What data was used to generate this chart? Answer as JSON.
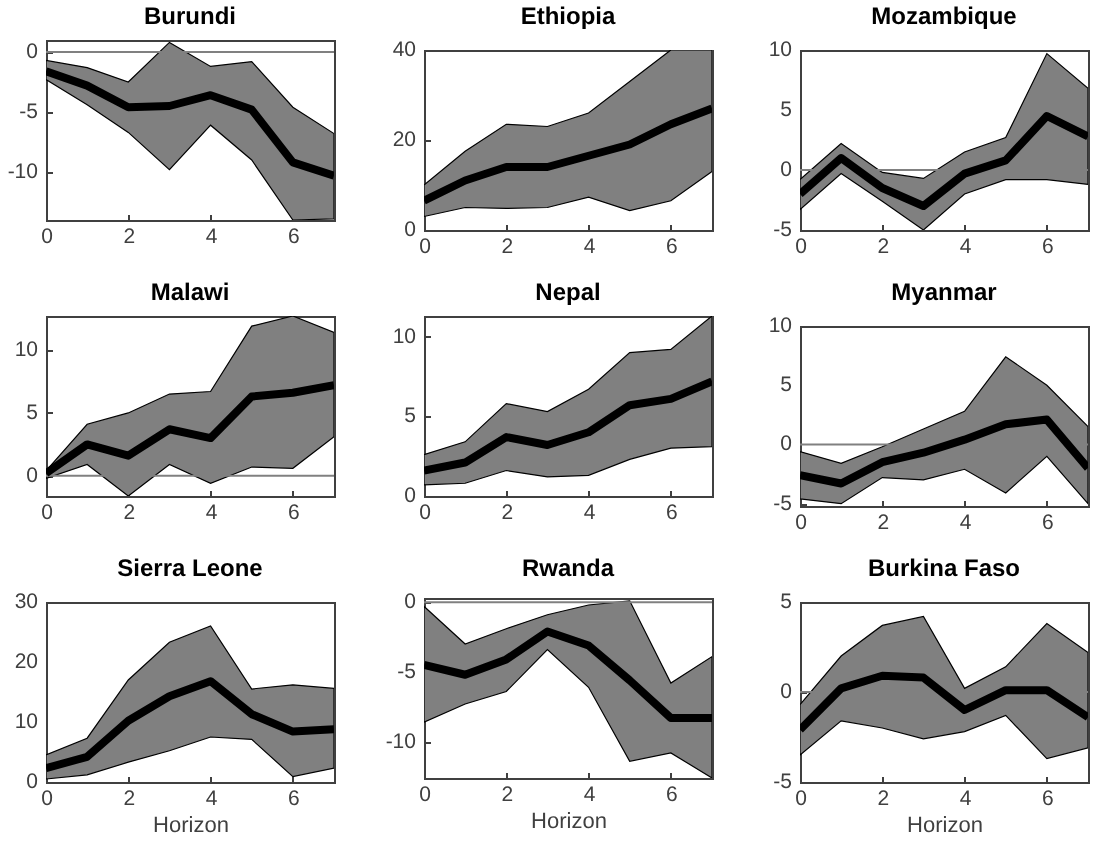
{
  "chart_data": [
    {
      "type": "line",
      "title": "Burundi",
      "x": [
        0,
        1,
        2,
        3,
        4,
        5,
        6,
        7
      ],
      "xlim": [
        0,
        7
      ],
      "xticks": [
        0,
        2,
        4,
        6
      ],
      "ylim": [
        -14,
        1
      ],
      "yticks": [
        -10,
        -5,
        0
      ],
      "grid": false,
      "ref_lines": [
        {
          "axis": "y",
          "value": 0,
          "color": "#808080"
        }
      ],
      "series": [
        {
          "color": "#000000",
          "values": [
            -1.6,
            -2.8,
            -4.6,
            -4.5,
            -3.6,
            -4.8,
            -9.2,
            -10.3
          ],
          "lower": [
            -2.3,
            -4.4,
            -6.7,
            -9.8,
            -6.1,
            -9,
            -14,
            -13.9
          ],
          "upper": [
            -0.7,
            -1.3,
            -2.5,
            0.8,
            -1.2,
            -0.8,
            -4.6,
            -6.8
          ]
        }
      ]
    },
    {
      "type": "line",
      "title": "Ethiopia",
      "x": [
        0,
        1,
        2,
        3,
        4,
        5,
        6,
        7
      ],
      "xlim": [
        0,
        7
      ],
      "xticks": [
        0,
        2,
        4,
        6
      ],
      "ylim": [
        0,
        40
      ],
      "yticks": [
        0,
        20,
        40
      ],
      "grid": false,
      "series": [
        {
          "color": "#000000",
          "values": [
            6.5,
            11,
            14,
            14,
            16.5,
            19,
            23.5,
            27
          ],
          "lower": [
            3,
            5,
            4.8,
            5,
            7.3,
            4.3,
            6.5,
            13
          ],
          "upper": [
            10,
            17.5,
            23.5,
            23,
            26,
            33,
            40,
            40
          ]
        }
      ]
    },
    {
      "type": "line",
      "title": "Mozambique",
      "x": [
        0,
        1,
        2,
        3,
        4,
        5,
        6,
        7
      ],
      "xlim": [
        0,
        7
      ],
      "xticks": [
        0,
        2,
        4,
        6
      ],
      "ylim": [
        -5,
        10
      ],
      "yticks": [
        -5,
        0,
        5,
        10
      ],
      "grid": false,
      "ref_lines": [
        {
          "axis": "y",
          "value": 0,
          "color": "#808080"
        }
      ],
      "series": [
        {
          "color": "#000000",
          "values": [
            -2,
            1,
            -1.5,
            -3,
            -0.3,
            0.8,
            4.5,
            2.8
          ],
          "lower": [
            -3.3,
            -0.3,
            -2.6,
            -5,
            -2,
            -0.8,
            -0.8,
            -1.2
          ],
          "upper": [
            -0.8,
            2.2,
            -0.2,
            -0.7,
            1.5,
            2.7,
            9.7,
            6.8
          ]
        }
      ]
    },
    {
      "type": "line",
      "title": "Malawi",
      "x": [
        0,
        1,
        2,
        3,
        4,
        5,
        6,
        7
      ],
      "xlim": [
        0,
        7
      ],
      "xticks": [
        0,
        2,
        4,
        6
      ],
      "ylim": [
        -1.6,
        12.7
      ],
      "yticks": [
        0,
        5,
        10
      ],
      "grid": false,
      "ref_lines": [
        {
          "axis": "y",
          "value": 0,
          "color": "#808080"
        }
      ],
      "series": [
        {
          "color": "#000000",
          "values": [
            0.2,
            2.5,
            1.6,
            3.7,
            3,
            6.3,
            6.6,
            7.2
          ],
          "lower": [
            -0.2,
            0.9,
            -1.6,
            0.9,
            -0.6,
            0.7,
            0.6,
            3.1
          ],
          "upper": [
            0.4,
            4.1,
            5,
            6.5,
            6.7,
            11.9,
            12.7,
            11.4
          ]
        }
      ]
    },
    {
      "type": "line",
      "title": "Nepal",
      "x": [
        0,
        1,
        2,
        3,
        4,
        5,
        6,
        7
      ],
      "xlim": [
        0,
        7
      ],
      "xticks": [
        0,
        2,
        4,
        6
      ],
      "ylim": [
        0,
        11.3
      ],
      "yticks": [
        0,
        5,
        10
      ],
      "grid": false,
      "series": [
        {
          "color": "#000000",
          "values": [
            1.6,
            2.1,
            3.7,
            3.2,
            4,
            5.7,
            6.1,
            7.2
          ],
          "lower": [
            0.7,
            0.8,
            1.6,
            1.2,
            1.3,
            2.3,
            3,
            3.1
          ],
          "upper": [
            2.6,
            3.4,
            5.8,
            5.3,
            6.7,
            9,
            9.2,
            11.3
          ]
        }
      ]
    },
    {
      "type": "line",
      "title": "Myanmar",
      "x": [
        0,
        1,
        2,
        3,
        4,
        5,
        6,
        7
      ],
      "xlim": [
        0,
        7
      ],
      "xticks": [
        0,
        2,
        4,
        6
      ],
      "ylim": [
        -5.2,
        10
      ],
      "yticks": [
        -5,
        0,
        5,
        10
      ],
      "grid": false,
      "ref_lines": [
        {
          "axis": "y",
          "value": 0,
          "color": "#808080"
        }
      ],
      "series": [
        {
          "color": "#000000",
          "values": [
            -2.6,
            -3.3,
            -1.5,
            -0.7,
            0.4,
            1.7,
            2.1,
            -2
          ],
          "lower": [
            -4.6,
            -5,
            -2.8,
            -3,
            -2.1,
            -4.1,
            -1,
            -5
          ],
          "upper": [
            -0.6,
            -1.6,
            -0.2,
            1.3,
            2.8,
            7.4,
            5,
            1.5
          ]
        }
      ]
    },
    {
      "type": "line",
      "title": "Sierra Leone",
      "xlabel": "Horizon",
      "x": [
        0,
        1,
        2,
        3,
        4,
        5,
        6,
        7
      ],
      "xlim": [
        0,
        7
      ],
      "xticks": [
        0,
        2,
        4,
        6
      ],
      "ylim": [
        0,
        30
      ],
      "yticks": [
        0,
        10,
        20,
        30
      ],
      "grid": false,
      "series": [
        {
          "color": "#000000",
          "values": [
            2.3,
            4.2,
            10.2,
            14.3,
            16.8,
            11.3,
            8.4,
            8.8
          ],
          "lower": [
            0.5,
            1.2,
            3.3,
            5.2,
            7.5,
            7.1,
            0.9,
            2.3
          ],
          "upper": [
            4.5,
            7.3,
            17,
            23.3,
            26,
            15.5,
            16.2,
            15.6
          ]
        }
      ]
    },
    {
      "type": "line",
      "title": "Rwanda",
      "xlabel": "Horizon",
      "x": [
        0,
        1,
        2,
        3,
        4,
        5,
        6,
        7
      ],
      "xlim": [
        0,
        7
      ],
      "xticks": [
        0,
        2,
        4,
        6
      ],
      "ylim": [
        -12.6,
        0.3
      ],
      "yticks": [
        -10,
        -5,
        0
      ],
      "grid": false,
      "ref_lines": [
        {
          "axis": "y",
          "value": 0,
          "color": "#808080"
        }
      ],
      "series": [
        {
          "color": "#000000",
          "values": [
            -4.5,
            -5.2,
            -4.1,
            -2.1,
            -3.1,
            -5.6,
            -8.3,
            -8.3
          ],
          "lower": [
            -8.6,
            -7.3,
            -6.4,
            -3.4,
            -6.1,
            -11.4,
            -10.8,
            -12.6
          ],
          "upper": [
            -0.3,
            -3,
            -1.9,
            -0.9,
            -0.2,
            0.1,
            -5.8,
            -3.9
          ]
        }
      ]
    },
    {
      "type": "line",
      "title": "Burkina Faso",
      "xlabel": "Horizon",
      "x": [
        0,
        1,
        2,
        3,
        4,
        5,
        6,
        7
      ],
      "xlim": [
        0,
        7
      ],
      "xticks": [
        0,
        2,
        4,
        6
      ],
      "ylim": [
        -5,
        5
      ],
      "yticks": [
        -5,
        0,
        5
      ],
      "grid": false,
      "ref_lines": [
        {
          "axis": "y",
          "value": 0,
          "color": "#808080"
        }
      ],
      "series": [
        {
          "color": "#000000",
          "values": [
            -2.1,
            0.2,
            0.9,
            0.8,
            -1,
            0.1,
            0.1,
            -1.4
          ],
          "lower": [
            -3.5,
            -1.6,
            -2,
            -2.6,
            -2.2,
            -1.3,
            -3.7,
            -3.1
          ],
          "upper": [
            -0.7,
            2,
            3.7,
            4.2,
            0.2,
            1.4,
            3.8,
            2.2
          ]
        }
      ]
    }
  ]
}
